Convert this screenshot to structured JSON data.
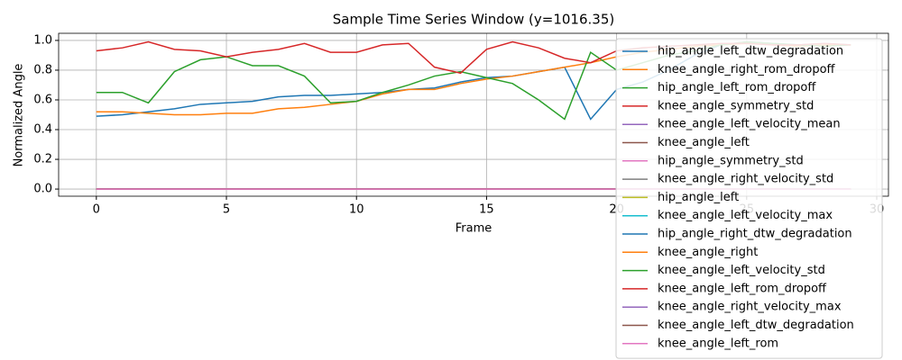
{
  "chart_data": {
    "type": "line",
    "title": "Sample Time Series Window (y=1016.35)",
    "x_label": "Frame",
    "y_label": "Normalized Angle",
    "x": [
      0,
      1,
      2,
      3,
      4,
      5,
      6,
      7,
      8,
      9,
      10,
      11,
      12,
      13,
      14,
      15,
      16,
      17,
      18,
      19,
      20,
      21,
      22,
      23,
      24,
      25,
      26,
      27,
      28,
      29
    ],
    "xlim": [
      -1.45,
      30.45
    ],
    "xticks": [
      0,
      5,
      10,
      15,
      20,
      25,
      30
    ],
    "ylim": [
      -0.048,
      1.048
    ],
    "yticks": [
      {
        "value": 0,
        "label": "0.0"
      },
      0.2,
      0.4,
      0.6,
      0.8,
      {
        "value": 1,
        "label": "1.0"
      }
    ],
    "grid": true,
    "legend": "upper right",
    "series": [
      {
        "name": "hip_angle_left_dtw_degradation",
        "color": "#1f77b4",
        "values": [
          0.49,
          0.5,
          0.52,
          0.54,
          0.57,
          0.58,
          0.59,
          0.62,
          0.63,
          0.63,
          0.64,
          0.65,
          0.67,
          0.68,
          0.72,
          0.75,
          0.76,
          0.79,
          0.82,
          0.47,
          0.67,
          0.72,
          0.8,
          0.9,
          0.97,
          0.99,
          0.98,
          0.97,
          0.98,
          0.97
        ]
      },
      {
        "name": "knee_angle_right_rom_dropoff",
        "color": "#ff7f0e",
        "values": [
          0.52,
          0.52,
          0.51,
          0.5,
          0.5,
          0.51,
          0.51,
          0.54,
          0.55,
          0.57,
          0.59,
          0.64,
          0.67,
          0.67,
          0.71,
          0.74,
          0.76,
          0.79,
          0.82,
          0.85,
          0.89,
          0.92,
          0.94,
          0.96,
          0.97,
          0.98,
          0.97,
          0.96,
          0.97,
          0.97
        ]
      },
      {
        "name": "hip_angle_left_rom_dropoff",
        "color": "#2ca02c",
        "values": [
          0.65,
          0.65,
          0.58,
          0.79,
          0.87,
          0.89,
          0.83,
          0.83,
          0.76,
          0.58,
          0.59,
          0.65,
          0.7,
          0.76,
          0.79,
          0.75,
          0.71,
          0.6,
          0.47,
          0.92,
          0.8,
          0.85,
          0.9,
          0.93,
          0.97,
          0.99,
          0.98,
          0.97,
          0.96,
          0.97
        ]
      },
      {
        "name": "knee_angle_symmetry_std",
        "color": "#d62728",
        "values": [
          0.93,
          0.95,
          0.99,
          0.94,
          0.93,
          0.89,
          0.92,
          0.94,
          0.98,
          0.92,
          0.92,
          0.97,
          0.98,
          0.82,
          0.78,
          0.94,
          0.99,
          0.95,
          0.88,
          0.85,
          0.93,
          0.95,
          0.96,
          0.97,
          0.98,
          0.98,
          0.97,
          0.97,
          0.98,
          0.97
        ]
      },
      {
        "name": "knee_angle_left_velocity_mean",
        "color": "#9467bd",
        "values": [
          0,
          0,
          0,
          0,
          0,
          0,
          0,
          0,
          0,
          0,
          0,
          0,
          0,
          0,
          0,
          0,
          0,
          0,
          0,
          0,
          0,
          0,
          0,
          0,
          0,
          0,
          0,
          0,
          0,
          0
        ]
      },
      {
        "name": "knee_angle_left",
        "color": "#8c564b",
        "values": [
          0,
          0,
          0,
          0,
          0,
          0,
          0,
          0,
          0,
          0,
          0,
          0,
          0,
          0,
          0,
          0,
          0,
          0,
          0,
          0,
          0,
          0,
          0,
          0,
          0,
          0,
          0,
          0,
          0,
          0
        ]
      },
      {
        "name": "hip_angle_symmetry_std",
        "color": "#e377c2",
        "values": [
          0,
          0,
          0,
          0,
          0,
          0,
          0,
          0,
          0,
          0,
          0,
          0,
          0,
          0,
          0,
          0,
          0,
          0,
          0,
          0,
          0,
          0,
          0,
          0,
          0,
          0,
          0,
          0,
          0,
          0
        ]
      },
      {
        "name": "knee_angle_right_velocity_std",
        "color": "#7f7f7f",
        "values": [
          0,
          0,
          0,
          0,
          0,
          0,
          0,
          0,
          0,
          0,
          0,
          0,
          0,
          0,
          0,
          0,
          0,
          0,
          0,
          0,
          0,
          0,
          0,
          0,
          0,
          0,
          0,
          0,
          0,
          0
        ]
      },
      {
        "name": "hip_angle_left",
        "color": "#bcbd22",
        "values": [
          0,
          0,
          0,
          0,
          0,
          0,
          0,
          0,
          0,
          0,
          0,
          0,
          0,
          0,
          0,
          0,
          0,
          0,
          0,
          0,
          0,
          0,
          0,
          0,
          0,
          0,
          0,
          0,
          0,
          0
        ]
      },
      {
        "name": "knee_angle_left_velocity_max",
        "color": "#17becf",
        "values": [
          0,
          0,
          0,
          0,
          0,
          0,
          0,
          0,
          0,
          0,
          0,
          0,
          0,
          0,
          0,
          0,
          0,
          0,
          0,
          0,
          0,
          0,
          0,
          0,
          0,
          0,
          0,
          0,
          0,
          0
        ]
      },
      {
        "name": "hip_angle_right_dtw_degradation",
        "color": "#1f77b4",
        "values": [
          0,
          0,
          0,
          0,
          0,
          0,
          0,
          0,
          0,
          0,
          0,
          0,
          0,
          0,
          0,
          0,
          0,
          0,
          0,
          0,
          0,
          0,
          0,
          0,
          0,
          0,
          0,
          0,
          0,
          0
        ]
      },
      {
        "name": "knee_angle_right",
        "color": "#ff7f0e",
        "values": [
          0,
          0,
          0,
          0,
          0,
          0,
          0,
          0,
          0,
          0,
          0,
          0,
          0,
          0,
          0,
          0,
          0,
          0,
          0,
          0,
          0,
          0,
          0,
          0,
          0,
          0,
          0,
          0,
          0,
          0
        ]
      },
      {
        "name": "knee_angle_left_velocity_std",
        "color": "#2ca02c",
        "values": [
          0,
          0,
          0,
          0,
          0,
          0,
          0,
          0,
          0,
          0,
          0,
          0,
          0,
          0,
          0,
          0,
          0,
          0,
          0,
          0,
          0,
          0,
          0,
          0,
          0,
          0,
          0,
          0,
          0,
          0
        ]
      },
      {
        "name": "knee_angle_left_rom_dropoff",
        "color": "#d62728",
        "values": [
          0,
          0,
          0,
          0,
          0,
          0,
          0,
          0,
          0,
          0,
          0,
          0,
          0,
          0,
          0,
          0,
          0,
          0,
          0,
          0,
          0,
          0,
          0,
          0,
          0,
          0,
          0,
          0,
          0,
          0
        ]
      },
      {
        "name": "knee_angle_right_velocity_max",
        "color": "#9467bd",
        "values": [
          0,
          0,
          0,
          0,
          0,
          0,
          0,
          0,
          0,
          0,
          0,
          0,
          0,
          0,
          0,
          0,
          0,
          0,
          0,
          0,
          0,
          0,
          0,
          0,
          0,
          0,
          0,
          0,
          0,
          0
        ]
      },
      {
        "name": "knee_angle_left_dtw_degradation",
        "color": "#8c564b",
        "values": [
          0,
          0,
          0,
          0,
          0,
          0,
          0,
          0,
          0,
          0,
          0,
          0,
          0,
          0,
          0,
          0,
          0,
          0,
          0,
          0,
          0,
          0,
          0,
          0,
          0,
          0,
          0,
          0,
          0,
          0
        ]
      },
      {
        "name": "knee_angle_left_rom",
        "color": "#e377c2",
        "values": [
          0,
          0,
          0,
          0,
          0,
          0,
          0,
          0,
          0,
          0,
          0,
          0,
          0,
          0,
          0,
          0,
          0,
          0,
          0,
          0,
          0,
          0,
          0,
          0,
          0,
          0,
          0,
          0,
          0,
          0
        ]
      }
    ]
  }
}
